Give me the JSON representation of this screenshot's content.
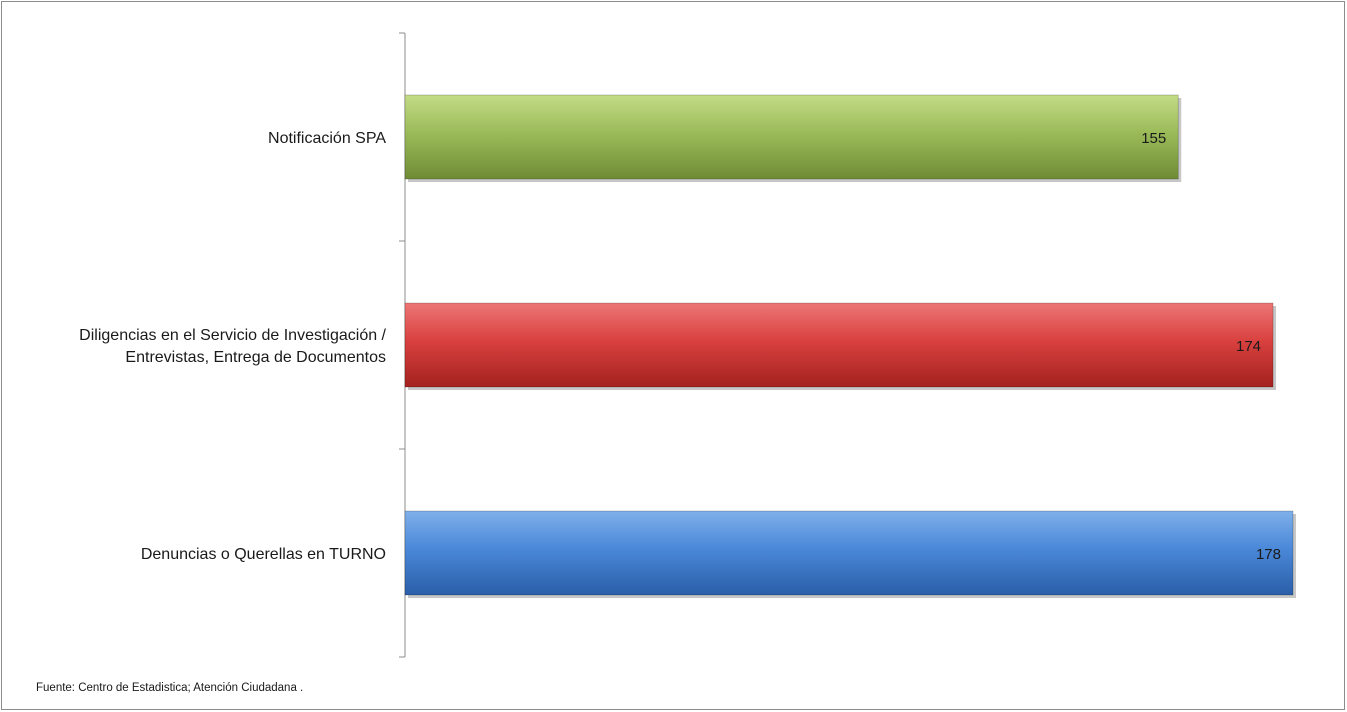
{
  "chart_data": {
    "type": "bar",
    "orientation": "horizontal",
    "categories": [
      "Notificación SPA",
      "Diligencias en el Servicio de Investigación / Entrevistas, Entrega de Documentos",
      "Denuncias o Querellas en TURNO"
    ],
    "category_lines": [
      [
        "Notificación SPA"
      ],
      [
        "Diligencias en el Servicio de Investigación /",
        "Entrevistas, Entrega de Documentos"
      ],
      [
        "Denuncias o Querellas en TURNO"
      ]
    ],
    "values": [
      155,
      174,
      178
    ],
    "bar_colors": [
      "#9bbb59",
      "#d9413f",
      "#3f7fd1"
    ],
    "xlim": [
      0,
      178
    ],
    "grid": false,
    "legend": "none",
    "data_labels": true
  },
  "source_note": "Fuente: Centro de Estadistica; Atención Ciudadana ."
}
